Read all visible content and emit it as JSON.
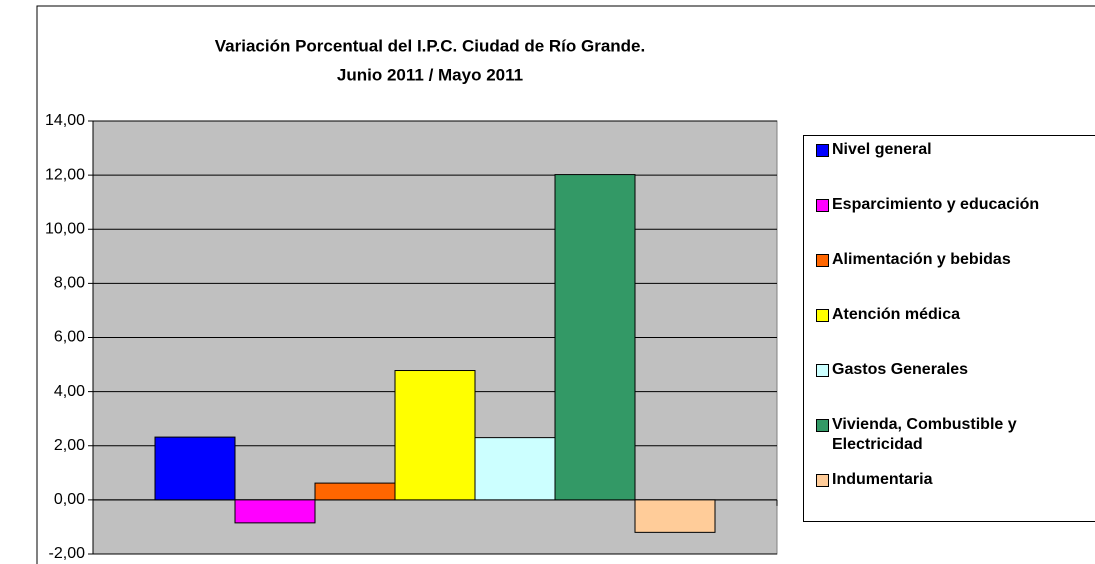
{
  "chart_data": {
    "type": "bar",
    "title": "Variación Porcentual del I.P.C. Ciudad de Río Grande.",
    "subtitle": "Junio 2011 / Mayo 2011",
    "categories": [
      null
    ],
    "series": [
      {
        "name": "Nivel general",
        "color": "#0000ff",
        "values": [
          2.32
        ]
      },
      {
        "name": "Esparcimiento y educación",
        "color": "#ff00ff",
        "values": [
          -0.85
        ]
      },
      {
        "name": "Alimentación y bebidas",
        "color": "#ff6600",
        "values": [
          0.62
        ]
      },
      {
        "name": "Atención médica",
        "color": "#ffff00",
        "values": [
          4.78
        ]
      },
      {
        "name": "Gastos Generales",
        "color": "#ccffff",
        "values": [
          2.3
        ]
      },
      {
        "name": "Vivienda, Combustible y Electricidad",
        "color": "#339966",
        "values": [
          12.02
        ]
      },
      {
        "name": "Indumentaria",
        "color": "#ffcc99",
        "values": [
          -1.2
        ]
      }
    ],
    "ylim": [
      -2,
      14
    ],
    "yticks": [
      {
        "value": -2,
        "label": "-2,00"
      },
      {
        "value": 0,
        "label": "0,00"
      },
      {
        "value": 2,
        "label": "2,00"
      },
      {
        "value": 4,
        "label": "4,00"
      },
      {
        "value": 6,
        "label": "6,00"
      },
      {
        "value": 8,
        "label": "8,00"
      },
      {
        "value": 10,
        "label": "10,00"
      },
      {
        "value": 12,
        "label": "12,00"
      },
      {
        "value": 14,
        "label": "14,00"
      }
    ],
    "grid": true
  }
}
